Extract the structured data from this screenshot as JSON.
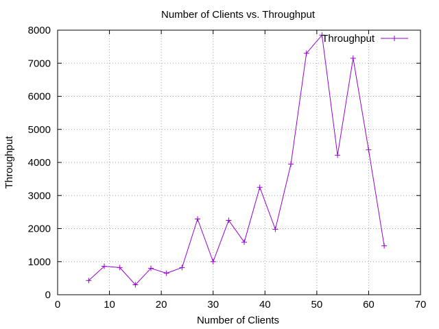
{
  "chart_data": {
    "type": "line",
    "title": "Number of Clients vs. Throughput",
    "xlabel": "Number of Clients",
    "ylabel": "Throughput",
    "xlim": [
      0,
      70
    ],
    "ylim": [
      0,
      8000
    ],
    "x_ticks": [
      0,
      10,
      20,
      30,
      40,
      50,
      60,
      70
    ],
    "y_ticks": [
      0,
      1000,
      2000,
      3000,
      4000,
      5000,
      6000,
      7000,
      8000
    ],
    "grid": true,
    "legend_position": "top-right",
    "series": [
      {
        "name": "Throughput",
        "color": "#9400d3",
        "marker": "plus",
        "x": [
          6,
          9,
          12,
          15,
          18,
          21,
          24,
          27,
          30,
          33,
          36,
          39,
          42,
          45,
          48,
          51,
          54,
          57,
          60,
          63
        ],
        "y": [
          430,
          860,
          820,
          300,
          800,
          650,
          820,
          2290,
          1000,
          2250,
          1590,
          3250,
          1980,
          3950,
          7300,
          7850,
          4220,
          7150,
          4380,
          1480
        ]
      }
    ]
  }
}
